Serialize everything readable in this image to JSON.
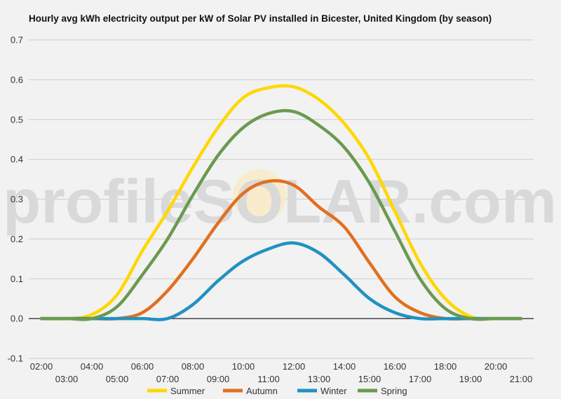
{
  "chart_data": {
    "type": "line",
    "title": "Hourly avg kWh electricity output per kW of Solar PV installed in Bicester, United Kingdom (by season)",
    "xlabel": "",
    "ylabel": "",
    "ylim": [
      -0.1,
      0.7
    ],
    "yticks": [
      "-0.1",
      "0.0",
      "0.1",
      "0.2",
      "0.3",
      "0.4",
      "0.5",
      "0.6",
      "0.7"
    ],
    "x": [
      "02:00",
      "03:00",
      "04:00",
      "05:00",
      "06:00",
      "07:00",
      "08:00",
      "09:00",
      "10:00",
      "11:00",
      "12:00",
      "13:00",
      "14:00",
      "15:00",
      "16:00",
      "17:00",
      "18:00",
      "19:00",
      "20:00",
      "21:00"
    ],
    "grid": true,
    "legend_position": "bottom",
    "series": [
      {
        "name": "Summer",
        "color": "#ffd700",
        "values": [
          0,
          0,
          0.01,
          0.06,
          0.17,
          0.27,
          0.38,
          0.48,
          0.555,
          0.58,
          0.582,
          0.55,
          0.49,
          0.4,
          0.27,
          0.14,
          0.05,
          0.005,
          0,
          0
        ]
      },
      {
        "name": "Autumn",
        "color": "#e07020",
        "values": [
          0,
          0,
          0,
          0,
          0.015,
          0.07,
          0.15,
          0.24,
          0.315,
          0.345,
          0.335,
          0.28,
          0.23,
          0.14,
          0.055,
          0.015,
          0,
          0,
          0,
          0
        ]
      },
      {
        "name": "Winter",
        "color": "#2092c0",
        "values": [
          0,
          0,
          0,
          0,
          0,
          0,
          0.035,
          0.095,
          0.145,
          0.175,
          0.19,
          0.165,
          0.11,
          0.05,
          0.015,
          0,
          0,
          0,
          0,
          0
        ]
      },
      {
        "name": "Spring",
        "color": "#6a9a50",
        "values": [
          0,
          0,
          0,
          0.03,
          0.11,
          0.2,
          0.31,
          0.41,
          0.48,
          0.515,
          0.52,
          0.485,
          0.43,
          0.34,
          0.22,
          0.1,
          0.025,
          0,
          0,
          0
        ]
      }
    ]
  },
  "watermark": {
    "text": "profileSOLAR.com"
  }
}
